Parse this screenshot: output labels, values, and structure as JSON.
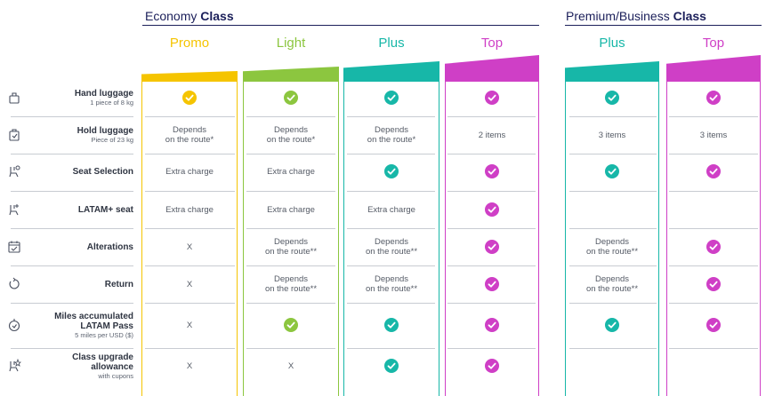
{
  "groups": [
    {
      "title_plain": "Economy",
      "title_bold": "Class"
    },
    {
      "title_plain": "Premium/Business",
      "title_bold": "Class"
    }
  ],
  "columns": [
    {
      "name": "Promo",
      "color": "#f5c400"
    },
    {
      "name": "Light",
      "color": "#8cc63f"
    },
    {
      "name": "Plus",
      "color": "#17b7a8"
    },
    {
      "name": "Top",
      "color": "#cf3fc6"
    },
    {
      "name": "Plus",
      "color": "#17b7a8"
    },
    {
      "name": "Top",
      "color": "#cf3fc6"
    }
  ],
  "rows": [
    {
      "label": "Hand luggage",
      "sub": "1 piece of 8 kg",
      "icon": "hand-luggage-icon",
      "cells": [
        "check",
        "check",
        "check",
        "check",
        "check",
        "check"
      ]
    },
    {
      "label": "Hold luggage",
      "sub": "Piece of 23 kg",
      "icon": "hold-luggage-icon",
      "cells": [
        "Depends\non the route*",
        "Depends\non the route*",
        "Depends\non the route*",
        "2 items",
        "3 items",
        "3 items"
      ]
    },
    {
      "label": "Seat Selection",
      "sub": "",
      "icon": "seat-selection-icon",
      "cells": [
        "Extra charge",
        "Extra charge",
        "check",
        "check",
        "check",
        "check"
      ]
    },
    {
      "label": "LATAM+ seat",
      "sub": "",
      "icon": "latam-plus-seat-icon",
      "cells": [
        "Extra charge",
        "Extra charge",
        "Extra charge",
        "check",
        "",
        ""
      ]
    },
    {
      "label": "Alterations",
      "sub": "",
      "icon": "alterations-icon",
      "cells": [
        "X",
        "Depends\non the route**",
        "Depends\non the route**",
        "check",
        "Depends\non the route**",
        "check"
      ]
    },
    {
      "label": "Return",
      "sub": "",
      "icon": "return-icon",
      "cells": [
        "X",
        "Depends\non the route**",
        "Depends\non the route**",
        "check",
        "Depends\non the route**",
        "check"
      ]
    },
    {
      "label": "Miles accumulated\nLATAM Pass",
      "sub": "5 miles per USD ($)",
      "icon": "miles-icon",
      "cells": [
        "X",
        "check",
        "check",
        "check",
        "check",
        "check"
      ]
    },
    {
      "label": "Class upgrade\nallowance",
      "sub": "with cupons",
      "icon": "class-upgrade-icon",
      "cells": [
        "X",
        "X",
        "check",
        "check",
        "",
        ""
      ]
    }
  ]
}
